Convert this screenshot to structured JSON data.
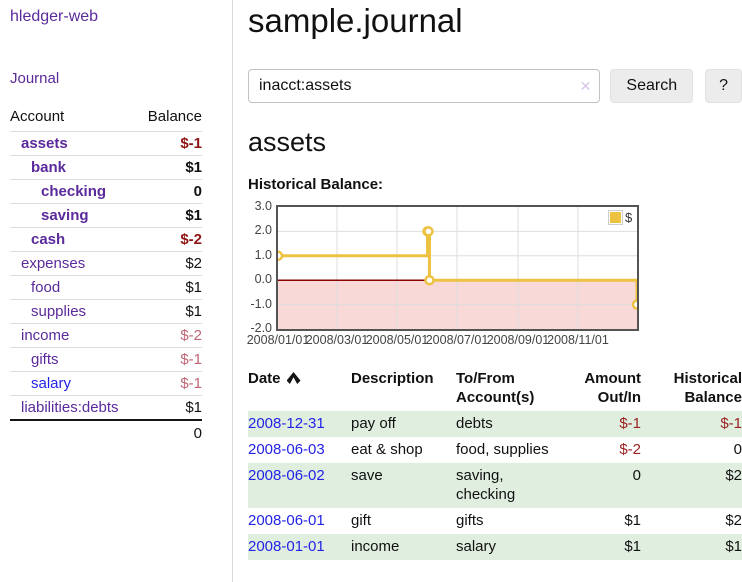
{
  "app": {
    "brand": "hledger-web",
    "nav_journal": "Journal"
  },
  "colors": {
    "link_purple": "#5b2a9b",
    "link_blue": "#2323e6",
    "negative": "#9b2121",
    "negative_strong": "#8e1414",
    "negative_muted": "#bf6672",
    "row_green": "#e0eee0",
    "series_gold": "#edc240",
    "negative_region_pink": "#f9d8d8",
    "zero_line_red": "#8b0000"
  },
  "sidebar": {
    "header": {
      "account": "Account",
      "balance": "Balance"
    },
    "accounts": [
      {
        "name": "assets",
        "balance": "$-1",
        "level": 0,
        "bold": true
      },
      {
        "name": "bank",
        "balance": "$1",
        "level": 1,
        "bold": true
      },
      {
        "name": "checking",
        "balance": "0",
        "level": 2,
        "bold": true
      },
      {
        "name": "saving",
        "balance": "$1",
        "level": 2,
        "bold": true
      },
      {
        "name": "cash",
        "balance": "$-2",
        "level": 1,
        "bold": true
      },
      {
        "name": "expenses",
        "balance": "$2",
        "level": 0,
        "bold": false
      },
      {
        "name": "food",
        "balance": "$1",
        "level": 1,
        "bold": false
      },
      {
        "name": "supplies",
        "balance": "$1",
        "level": 1,
        "bold": false
      },
      {
        "name": "income",
        "balance": "$-2",
        "level": 0,
        "bold": false
      },
      {
        "name": "gifts",
        "balance": "$-1",
        "level": 1,
        "bold": false
      },
      {
        "name": "salary",
        "balance": "$-1",
        "level": 1,
        "bold": false,
        "link_color": "#2323e6"
      },
      {
        "name": "liabilities:debts",
        "balance": "$1",
        "level": 0,
        "bold": false
      }
    ],
    "total": "0"
  },
  "header": {
    "title": "sample.journal"
  },
  "search": {
    "value": "inacct:assets",
    "clear_icon": "✕",
    "button_label": "Search",
    "help_label": "?"
  },
  "main": {
    "account_heading": "assets",
    "chart_title": "Historical Balance:"
  },
  "chart_data": {
    "type": "line",
    "title": "Historical Balance",
    "step": true,
    "xrange": [
      "2008-01-01",
      "2008-12-31"
    ],
    "ylim": [
      -2,
      3
    ],
    "yticks": [
      3.0,
      2.0,
      1.0,
      0.0,
      -1.0,
      -2.0
    ],
    "xticks": [
      "2008/01/01",
      "2008/03/01",
      "2008/05/01",
      "2008/07/01",
      "2008/09/01",
      "2008/11/01"
    ],
    "legend": [
      "$"
    ],
    "legend_position": "top-right",
    "grid": true,
    "series": [
      {
        "name": "$",
        "color": "#edc240",
        "points": [
          [
            "2008-01-01",
            1
          ],
          [
            "2008-06-01",
            2
          ],
          [
            "2008-06-02",
            2
          ],
          [
            "2008-06-03",
            0
          ],
          [
            "2008-12-31",
            -1
          ]
        ]
      }
    ],
    "negative_region_fill": "#f9d8d8",
    "zero_line_color": "#8b0000"
  },
  "register": {
    "columns": [
      "Date",
      "Description",
      "To/From Account(s)",
      "Amount Out/In",
      "Historical Balance"
    ],
    "rows": [
      {
        "date": "2008-12-31",
        "description": "pay off",
        "accounts": "debts",
        "amount": "$-1",
        "balance": "$-1"
      },
      {
        "date": "2008-06-03",
        "description": "eat & shop",
        "accounts": "food, supplies",
        "amount": "$-2",
        "balance": "0"
      },
      {
        "date": "2008-06-02",
        "description": "save",
        "accounts": "saving, checking",
        "amount": "0",
        "balance": "$2"
      },
      {
        "date": "2008-06-01",
        "description": "gift",
        "accounts": "gifts",
        "amount": "$1",
        "balance": "$2"
      },
      {
        "date": "2008-01-01",
        "description": "income",
        "accounts": "salary",
        "amount": "$1",
        "balance": "$1"
      }
    ]
  }
}
